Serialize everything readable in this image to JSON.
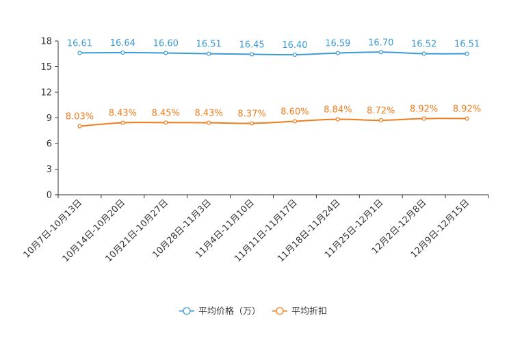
{
  "chart_data": {
    "type": "line",
    "categories": [
      "10月7日-10月13日",
      "10月14日-10月20日",
      "10月21日-10月27日",
      "10月28日-11月3日",
      "11月4日-11月10日",
      "11月11日-11月17日",
      "11月18日-11月24日",
      "11月25日-12月1日",
      "12月2日-12月8日",
      "12月9日-12月15日"
    ],
    "series": [
      {
        "name": "平均价格（万）",
        "color": "#3a9bd5",
        "values": [
          16.61,
          16.64,
          16.6,
          16.51,
          16.45,
          16.4,
          16.59,
          16.7,
          16.52,
          16.51
        ],
        "labels": [
          "16.61",
          "16.64",
          "16.60",
          "16.51",
          "16.45",
          "16.40",
          "16.59",
          "16.70",
          "16.52",
          "16.51"
        ]
      },
      {
        "name": "平均折扣",
        "color": "#f07c1c",
        "values": [
          8.03,
          8.43,
          8.45,
          8.43,
          8.37,
          8.6,
          8.84,
          8.72,
          8.92,
          8.92
        ],
        "labels": [
          "8.03%",
          "8.43%",
          "8.45%",
          "8.43%",
          "8.37%",
          "8.60%",
          "8.84%",
          "8.72%",
          "8.92%",
          "8.92%"
        ]
      }
    ],
    "y_ticks": [
      0,
      3,
      6,
      9,
      12,
      15,
      18
    ],
    "ylim": [
      0,
      18
    ],
    "title": "",
    "xlabel": "",
    "ylabel": "",
    "legend_position": "bottom-center",
    "grid": false
  }
}
